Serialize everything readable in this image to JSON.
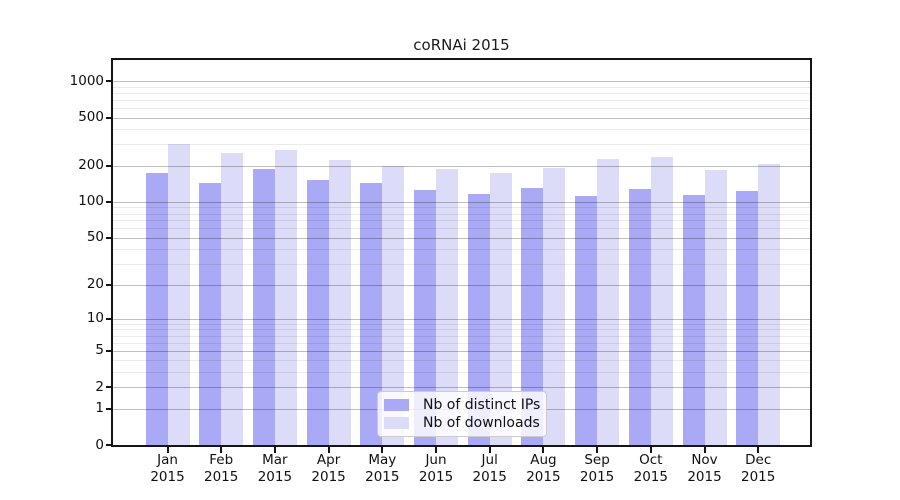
{
  "figure": {
    "title": "coRNAi 2015"
  },
  "chart_data": {
    "type": "bar",
    "title": "coRNAi 2015",
    "yscale": "log1p",
    "grid": true,
    "legend_position": "lower center",
    "categories": [
      "Jan",
      "Feb",
      "Mar",
      "Apr",
      "May",
      "Jun",
      "Jul",
      "Aug",
      "Sep",
      "Oct",
      "Nov",
      "Dec"
    ],
    "category_year": "2015",
    "series": [
      {
        "name": "Nb of distinct IPs",
        "color": "#a9a9f5",
        "values": [
          175,
          144,
          188,
          153,
          144,
          126,
          117,
          131,
          112,
          128,
          115,
          124
        ]
      },
      {
        "name": "Nb of downloads",
        "color": "#dcdcf8",
        "values": [
          305,
          255,
          270,
          224,
          200,
          188,
          174,
          191,
          228,
          237,
          184,
          206
        ]
      }
    ],
    "yticks": [
      0,
      1,
      2,
      5,
      10,
      20,
      50,
      100,
      200,
      500,
      1000
    ],
    "minor_gridlines": [
      3,
      4,
      6,
      7,
      8,
      9,
      30,
      40,
      60,
      70,
      80,
      90,
      300,
      400,
      600,
      700,
      800,
      900
    ],
    "ylim": [
      0,
      1490
    ],
    "xlabel": "",
    "ylabel": ""
  }
}
